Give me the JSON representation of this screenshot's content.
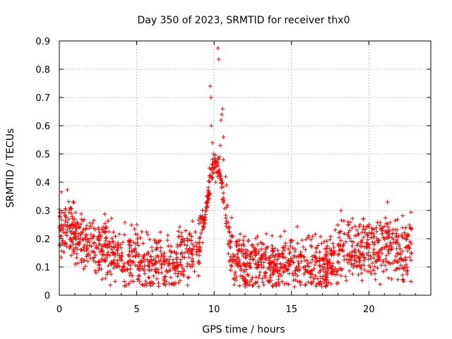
{
  "chart_data": {
    "type": "scatter",
    "title": "Day 350 of 2023, SRMTID for receiver thx0",
    "xlabel": "GPS time / hours",
    "ylabel": "SRMTID / TECUs",
    "xlim": [
      0,
      24
    ],
    "ylim": [
      0,
      0.9
    ],
    "xticks": [
      0,
      5,
      10,
      15,
      20
    ],
    "yticks": [
      0,
      0.1,
      0.2,
      0.3,
      0.4,
      0.5,
      0.6,
      0.7,
      0.8,
      0.9
    ],
    "xtick_labels": [
      "0",
      "5",
      "10",
      "15",
      "20"
    ],
    "ytick_labels": [
      "0",
      "0.1",
      "0.2",
      "0.3",
      "0.4",
      "0.5",
      "0.6",
      "0.7",
      "0.8",
      "0.9"
    ],
    "grid": true,
    "marker": "+",
    "series": [
      {
        "name": "thx0",
        "color": "#ff0000",
        "profile": [
          [
            0.0,
            0.22
          ],
          [
            0.5,
            0.25
          ],
          [
            1.0,
            0.22
          ],
          [
            1.5,
            0.19
          ],
          [
            2.0,
            0.17
          ],
          [
            3.0,
            0.16
          ],
          [
            4.0,
            0.14
          ],
          [
            5.0,
            0.13
          ],
          [
            6.0,
            0.12
          ],
          [
            7.0,
            0.11
          ],
          [
            7.8,
            0.12
          ],
          [
            8.5,
            0.15
          ],
          [
            9.0,
            0.18
          ],
          [
            9.3,
            0.25
          ],
          [
            9.6,
            0.35
          ],
          [
            9.9,
            0.45
          ],
          [
            10.2,
            0.48
          ],
          [
            10.5,
            0.38
          ],
          [
            10.8,
            0.25
          ],
          [
            11.2,
            0.15
          ],
          [
            12.0,
            0.1
          ],
          [
            13.0,
            0.11
          ],
          [
            14.0,
            0.11
          ],
          [
            15.0,
            0.12
          ],
          [
            16.0,
            0.1
          ],
          [
            17.0,
            0.1
          ],
          [
            17.8,
            0.12
          ],
          [
            18.2,
            0.18
          ],
          [
            19.0,
            0.16
          ],
          [
            20.0,
            0.16
          ],
          [
            21.0,
            0.18
          ],
          [
            22.0,
            0.16
          ],
          [
            22.8,
            0.17
          ]
        ],
        "spread": 0.1,
        "x_end": 22.8,
        "n_points": 1700,
        "peaks": [
          [
            10.25,
            0.875
          ],
          [
            10.3,
            0.835
          ],
          [
            9.75,
            0.74
          ],
          [
            9.8,
            0.7
          ],
          [
            10.55,
            0.66
          ],
          [
            10.5,
            0.64
          ],
          [
            10.45,
            0.62
          ],
          [
            9.82,
            0.6
          ],
          [
            10.6,
            0.56
          ],
          [
            9.9,
            0.54
          ],
          [
            10.4,
            0.53
          ],
          [
            9.95,
            0.5
          ],
          [
            10.35,
            0.49
          ],
          [
            10.6,
            0.48
          ],
          [
            9.7,
            0.45
          ],
          [
            10.75,
            0.42
          ],
          [
            10.1,
            0.4
          ],
          [
            9.6,
            0.35
          ],
          [
            10.8,
            0.39
          ],
          [
            9.5,
            0.3
          ],
          [
            0.9,
            0.33
          ],
          [
            0.7,
            0.31
          ],
          [
            18.2,
            0.3
          ],
          [
            21.2,
            0.33
          ],
          [
            22.7,
            0.24
          ],
          [
            12.1,
            0.04
          ],
          [
            16.3,
            0.04
          ],
          [
            15.2,
            0.03
          ]
        ]
      }
    ]
  }
}
